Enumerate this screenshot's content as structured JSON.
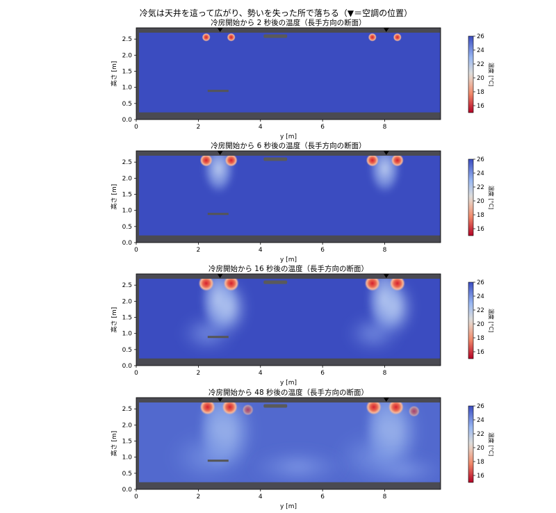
{
  "figure": {
    "suptitle": "冷気は天井を這って広がり、勢いを失った所で落ちる（▼＝空調の位置）"
  },
  "colors": {
    "room_cool": "#3b4cc0",
    "room_white": "#dddddd",
    "warm_red": "#b40426",
    "wall_gray": "#4a4a52",
    "marker": "#000000"
  },
  "chart_data": [
    {
      "type": "heatmap",
      "title": "冷房開始から 2 秒後の温度（長手方向の断面）",
      "xlabel": "y [m]",
      "ylabel": "高さ [m]",
      "xlim": [
        0,
        9.8
      ],
      "ylim": [
        0,
        2.85
      ],
      "xticks": [
        "0",
        "2",
        "4",
        "6",
        "8"
      ],
      "yticks": [
        "0.0",
        "0.5",
        "1.0",
        "1.5",
        "2.0",
        "2.5"
      ],
      "ac_positions_x": [
        2.7,
        8.05
      ],
      "colorbar": {
        "label": "温度 [°C]",
        "min": 15,
        "max": 26,
        "ticks": [
          "16",
          "18",
          "20",
          "22",
          "24",
          "26"
        ]
      }
    },
    {
      "type": "heatmap",
      "title": "冷房開始から 6 秒後の温度（長手方向の断面）",
      "xlabel": "y [m]",
      "ylabel": "高さ [m]",
      "xlim": [
        0,
        9.8
      ],
      "ylim": [
        0,
        2.85
      ],
      "xticks": [
        "0",
        "2",
        "4",
        "6",
        "8"
      ],
      "yticks": [
        "0.0",
        "0.5",
        "1.0",
        "1.5",
        "2.0",
        "2.5"
      ],
      "ac_positions_x": [
        2.7,
        8.05
      ],
      "colorbar": {
        "label": "温度 [°C]",
        "min": 15,
        "max": 26,
        "ticks": [
          "16",
          "18",
          "20",
          "22",
          "24",
          "26"
        ]
      }
    },
    {
      "type": "heatmap",
      "title": "冷房開始から 16 秒後の温度（長手方向の断面）",
      "xlabel": "y [m]",
      "ylabel": "高さ [m]",
      "xlim": [
        0,
        9.8
      ],
      "ylim": [
        0,
        2.85
      ],
      "xticks": [
        "0",
        "2",
        "4",
        "6",
        "8"
      ],
      "yticks": [
        "0.0",
        "0.5",
        "1.0",
        "1.5",
        "2.0",
        "2.5"
      ],
      "ac_positions_x": [
        2.7,
        8.05
      ],
      "colorbar": {
        "label": "温度 [°C]",
        "min": 15,
        "max": 26,
        "ticks": [
          "16",
          "18",
          "20",
          "22",
          "24",
          "26"
        ]
      }
    },
    {
      "type": "heatmap",
      "title": "冷房開始から 48 秒後の温度（長手方向の断面）",
      "xlabel": "y [m]",
      "ylabel": "高さ [m]",
      "xlim": [
        0,
        9.8
      ],
      "ylim": [
        0,
        2.85
      ],
      "xticks": [
        "0",
        "2",
        "4",
        "6",
        "8"
      ],
      "yticks": [
        "0.0",
        "0.5",
        "1.0",
        "1.5",
        "2.0",
        "2.5"
      ],
      "ac_positions_x": [
        2.7,
        8.05
      ],
      "colorbar": {
        "label": "温度 [°C]",
        "min": 15,
        "max": 26,
        "ticks": [
          "16",
          "18",
          "20",
          "22",
          "24",
          "26"
        ]
      }
    }
  ]
}
